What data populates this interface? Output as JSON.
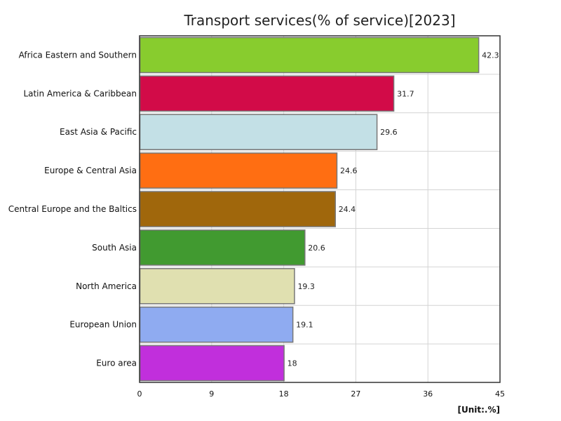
{
  "chart_data": {
    "type": "bar",
    "orientation": "horizontal",
    "title": "Transport services(% of service)[2023]",
    "unit": "[Unit:.%]",
    "xlim": [
      0,
      45
    ],
    "xticks": [
      0,
      9,
      18,
      27,
      36,
      45
    ],
    "grid": true,
    "categories": [
      "Africa Eastern and Southern",
      "Latin America & Caribbean",
      "East Asia & Pacific",
      "Europe & Central Asia",
      "Central Europe and the Baltics",
      "South Asia",
      "North America",
      "European Union",
      "Euro area"
    ],
    "values": [
      42.3,
      31.7,
      29.6,
      24.6,
      24.4,
      20.6,
      19.3,
      19.1,
      18
    ],
    "colors": [
      "#88cc2e",
      "#d20b48",
      "#c3e0e6",
      "#ff6e12",
      "#a0670c",
      "#419a30",
      "#e0e0b0",
      "#8fabf1",
      "#c12fdc"
    ]
  }
}
